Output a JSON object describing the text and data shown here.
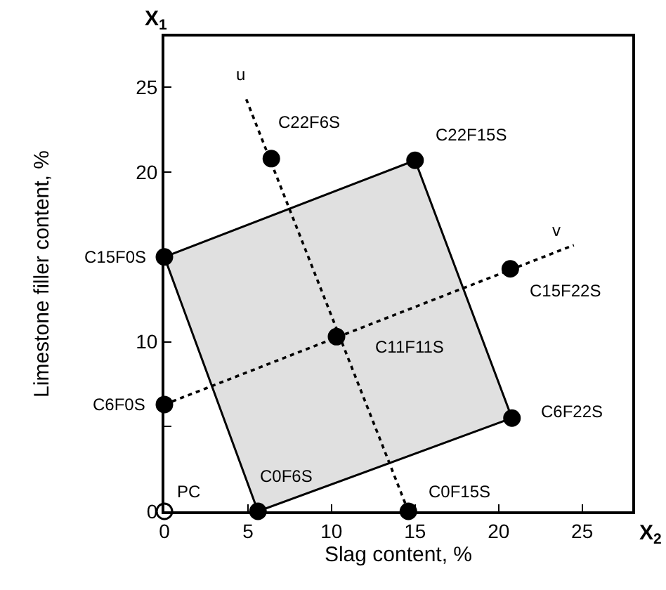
{
  "chart_data": {
    "type": "scatter",
    "xlabel": "Slag content, %",
    "ylabel": "Limestone filler content, %",
    "xlim": [
      0,
      28
    ],
    "ylim": [
      0,
      28
    ],
    "xticks": [
      0,
      5,
      10,
      15,
      20,
      25
    ],
    "yticks": [
      0,
      {
        "value": 5,
        "label": null
      },
      10,
      {
        "value": 15,
        "label": null
      },
      20,
      25
    ],
    "series": [
      {
        "type": "area",
        "color": "#e0e0e0",
        "x": [
          0,
          15,
          20.8,
          5.6,
          0
        ],
        "values": [
          15,
          20.7,
          5.5,
          0,
          15
        ]
      },
      {
        "type": "line",
        "line_style": "dotted",
        "color": "#000000",
        "x": [
          4.9,
          14.6
        ],
        "values": [
          24.3,
          0
        ]
      },
      {
        "type": "line",
        "line_style": "dotted",
        "color": "#000000",
        "x": [
          0,
          24.5
        ],
        "values": [
          6.3,
          15.7
        ]
      },
      {
        "type": "scatter",
        "marker": "circle",
        "color": "#000000",
        "colors": [
          "#ffffff",
          "#000000",
          "#000000",
          "#000000",
          "#000000",
          "#000000",
          "#000000",
          "#000000",
          "#000000",
          "#000000"
        ],
        "x": [
          0,
          5.6,
          14.6,
          0,
          0,
          10.3,
          6.4,
          15,
          20.7,
          20.8
        ],
        "values": [
          0,
          0,
          0,
          6.3,
          15,
          10.3,
          20.8,
          20.7,
          14.3,
          5.5
        ]
      }
    ],
    "annotations": [
      {
        "text": "PC",
        "x": 0,
        "y": 0
      },
      {
        "text": "C0F6S",
        "x": 5.6,
        "y": 0
      },
      {
        "text": "C0F15S",
        "x": 14.6,
        "y": 0
      },
      {
        "text": "C6F0S",
        "x": 0,
        "y": 6.3
      },
      {
        "text": "C15F0S",
        "x": 0,
        "y": 15
      },
      {
        "text": "C11F11S",
        "x": 10.3,
        "y": 10.3
      },
      {
        "text": "C22F6S",
        "x": 6.4,
        "y": 20.8
      },
      {
        "text": "C22F15S",
        "x": 15,
        "y": 20.7
      },
      {
        "text": "C15F22S",
        "x": 20.7,
        "y": 14.3
      },
      {
        "text": "C6F22S",
        "x": 20.8,
        "y": 5.5
      },
      {
        "text": "u",
        "x": 4.9,
        "y": 24.3
      },
      {
        "text": "v",
        "x": 24.5,
        "y": 15.7
      },
      "X$_{1}$",
      "X$_{2}$"
    ]
  }
}
